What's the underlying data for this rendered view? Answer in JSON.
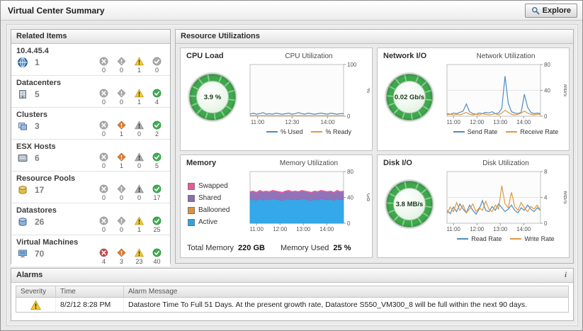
{
  "header": {
    "title": "Virtual Center Summary"
  },
  "toolbar": {
    "explore_label": "Explore"
  },
  "related_items": {
    "title": "Related Items",
    "rows": [
      {
        "label": "10.4.45.4",
        "icon": "vcenter-icon",
        "total": "1",
        "fatal": "0",
        "critical": "0",
        "warning": "1",
        "normal": "0"
      },
      {
        "label": "Datacenters",
        "icon": "datacenter-icon",
        "total": "5",
        "fatal": "0",
        "critical": "0",
        "warning": "1",
        "normal": "4"
      },
      {
        "label": "Clusters",
        "icon": "cluster-icon",
        "total": "3",
        "fatal": "0",
        "critical": "1",
        "warning": "0",
        "normal": "2"
      },
      {
        "label": "ESX Hosts",
        "icon": "esx-host-icon",
        "total": "6",
        "fatal": "0",
        "critical": "1",
        "warning": "0",
        "normal": "5"
      },
      {
        "label": "Resource Pools",
        "icon": "resource-pool-icon",
        "total": "17",
        "fatal": "0",
        "critical": "0",
        "warning": "0",
        "normal": "17"
      },
      {
        "label": "Datastores",
        "icon": "datastore-icon",
        "total": "26",
        "fatal": "0",
        "critical": "0",
        "warning": "1",
        "normal": "25"
      },
      {
        "label": "Virtual Machines",
        "icon": "vm-icon",
        "total": "70",
        "fatal": "4",
        "critical": "3",
        "warning": "23",
        "normal": "40"
      }
    ]
  },
  "resource_utilizations": {
    "title": "Resource Utilizations",
    "cpu": {
      "title": "CPU Load",
      "gauge_value": "3.9 %"
    },
    "network": {
      "title": "Network I/O",
      "gauge_value": "0.02 Gb/s"
    },
    "memory": {
      "title": "Memory",
      "total_memory_label": "Total Memory",
      "total_memory_value": "220 GB",
      "memory_used_label": "Memory Used",
      "memory_used_value": "25 %"
    },
    "disk": {
      "title": "Disk I/O",
      "gauge_value": "3.8 MB/s"
    }
  },
  "alarms": {
    "title": "Alarms",
    "info_icon": "i",
    "columns": [
      "Severity",
      "Time",
      "Alarm Message"
    ],
    "rows": [
      {
        "severity": "warning",
        "time": "8/2/12 8:28 PM",
        "message": "Datastore Time To Full 51 Days. At the present growth rate, Datastore S550_VM300_8 will be full within the next 90 days."
      }
    ]
  },
  "chart_data": [
    {
      "id": "cpu",
      "type": "line",
      "title": "CPU Utilization",
      "ylabel": "%",
      "ylim": [
        0,
        100
      ],
      "yticks": [
        0,
        100
      ],
      "xticks": [
        {
          "label": "11:00",
          "pos": 0.08
        },
        {
          "label": "12:30",
          "pos": 0.45
        },
        {
          "label": "14:00",
          "pos": 0.83
        }
      ],
      "legend_position": "bottom",
      "grid": true,
      "series": [
        {
          "name": "% Used",
          "color": "#4e8cc2",
          "values": [
            4,
            6,
            4,
            5,
            7,
            4,
            5,
            4,
            6,
            5,
            4,
            5,
            6,
            4,
            5,
            7,
            5,
            4,
            6,
            5,
            4,
            5,
            6,
            5,
            4,
            6,
            5,
            4,
            5,
            5
          ]
        },
        {
          "name": "% Ready",
          "color": "#e0993f",
          "values": [
            1,
            1,
            1,
            1,
            1,
            1,
            1,
            1,
            1,
            1,
            1,
            1,
            1,
            1,
            1,
            1,
            1,
            1,
            1,
            1,
            1,
            1,
            1,
            1,
            1,
            1,
            1,
            1,
            1,
            1
          ]
        }
      ]
    },
    {
      "id": "network",
      "type": "line",
      "title": "Network Utilization",
      "ylabel": "Mb/s",
      "ylim": [
        0,
        80
      ],
      "yticks": [
        0,
        40,
        80
      ],
      "xticks": [
        {
          "label": "11:00",
          "pos": 0.07
        },
        {
          "label": "12:00",
          "pos": 0.32
        },
        {
          "label": "13:00",
          "pos": 0.57
        },
        {
          "label": "14:00",
          "pos": 0.82
        }
      ],
      "legend_position": "bottom",
      "grid": true,
      "series": [
        {
          "name": "Send Rate",
          "color": "#4e8cc2",
          "values": [
            4,
            3,
            5,
            4,
            6,
            8,
            19,
            7,
            4,
            3,
            5,
            4,
            6,
            5,
            7,
            4,
            5,
            12,
            62,
            20,
            7,
            5,
            4,
            6,
            34,
            14,
            6,
            4,
            5,
            4
          ]
        },
        {
          "name": "Receive Rate",
          "color": "#e0993f",
          "values": [
            2,
            3,
            2,
            3,
            2,
            4,
            6,
            3,
            2,
            3,
            2,
            4,
            3,
            2,
            3,
            4,
            2,
            5,
            9,
            6,
            3,
            2,
            3,
            5,
            8,
            5,
            3,
            2,
            3,
            3
          ]
        }
      ]
    },
    {
      "id": "memory",
      "type": "area",
      "stacked": true,
      "title": "Memory Utilization",
      "ylabel": "GB",
      "ylim": [
        0,
        80
      ],
      "yticks": [
        0,
        40,
        80
      ],
      "xticks": [
        {
          "label": "11:00",
          "pos": 0.07
        },
        {
          "label": "12:00",
          "pos": 0.32
        },
        {
          "label": "13:00",
          "pos": 0.57
        },
        {
          "label": "14:00",
          "pos": 0.82
        }
      ],
      "legend_position": "left",
      "grid": true,
      "legend_order": [
        "Swapped",
        "Shared",
        "Ballooned",
        "Active"
      ],
      "series": [
        {
          "name": "Active",
          "color": "#29a3e8",
          "values": [
            36,
            37,
            35,
            38,
            36,
            37,
            36,
            38,
            37,
            36,
            35,
            37,
            38,
            36,
            37,
            36,
            38,
            37,
            36,
            35,
            37,
            36,
            38,
            37,
            36,
            37,
            35,
            38,
            36,
            37
          ]
        },
        {
          "name": "Ballooned",
          "color": "#e0923a",
          "values": [
            0,
            0,
            0,
            0,
            0,
            0,
            0,
            0,
            0,
            0,
            0,
            0,
            0,
            0,
            0,
            0,
            0,
            0,
            0,
            0,
            0,
            0,
            0,
            0,
            0,
            0,
            0,
            0,
            0,
            0
          ]
        },
        {
          "name": "Shared",
          "color": "#8a6db5",
          "values": [
            12,
            12,
            12,
            12,
            12,
            12,
            12,
            12,
            12,
            12,
            12,
            12,
            12,
            12,
            12,
            12,
            12,
            12,
            12,
            12,
            12,
            12,
            12,
            12,
            12,
            12,
            12,
            12,
            12,
            12
          ]
        },
        {
          "name": "Swapped",
          "color": "#ea579f",
          "values": [
            1,
            1,
            1,
            1,
            1,
            1,
            1,
            1,
            1,
            1,
            1,
            1,
            1,
            1,
            1,
            1,
            1,
            1,
            1,
            1,
            1,
            1,
            1,
            1,
            1,
            1,
            1,
            1,
            1,
            1
          ]
        }
      ]
    },
    {
      "id": "disk",
      "type": "line",
      "title": "Disk Utilization",
      "ylabel": "MB/s",
      "ylim": [
        0,
        8
      ],
      "yticks": [
        0,
        4,
        8
      ],
      "xticks": [
        {
          "label": "11:00",
          "pos": 0.07
        },
        {
          "label": "12:00",
          "pos": 0.32
        },
        {
          "label": "13:00",
          "pos": 0.57
        },
        {
          "label": "14:00",
          "pos": 0.82
        }
      ],
      "legend_position": "bottom",
      "grid": true,
      "series": [
        {
          "name": "Read Rate",
          "color": "#4e8cc2",
          "values": [
            2,
            1.5,
            2.5,
            1.8,
            3,
            2.2,
            1.6,
            2.8,
            2,
            1.4,
            2.2,
            3.5,
            2,
            1.8,
            2.6,
            2,
            3,
            2.4,
            1.8,
            2.2,
            2.8,
            2,
            1.6,
            2.4,
            2,
            2.8,
            2.2,
            1.8,
            2.4,
            2
          ]
        },
        {
          "name": "Write Rate",
          "color": "#e0993f",
          "values": [
            1.5,
            2.5,
            1.8,
            3.2,
            2,
            2.8,
            1.6,
            2.2,
            3,
            1.8,
            2.4,
            2,
            3.4,
            2.2,
            1.8,
            2.8,
            2.2,
            5.8,
            3,
            2.4,
            4.8,
            2.6,
            2,
            3.2,
            2.4,
            1.8,
            2.6,
            2.2,
            2.8,
            2
          ]
        }
      ]
    }
  ]
}
